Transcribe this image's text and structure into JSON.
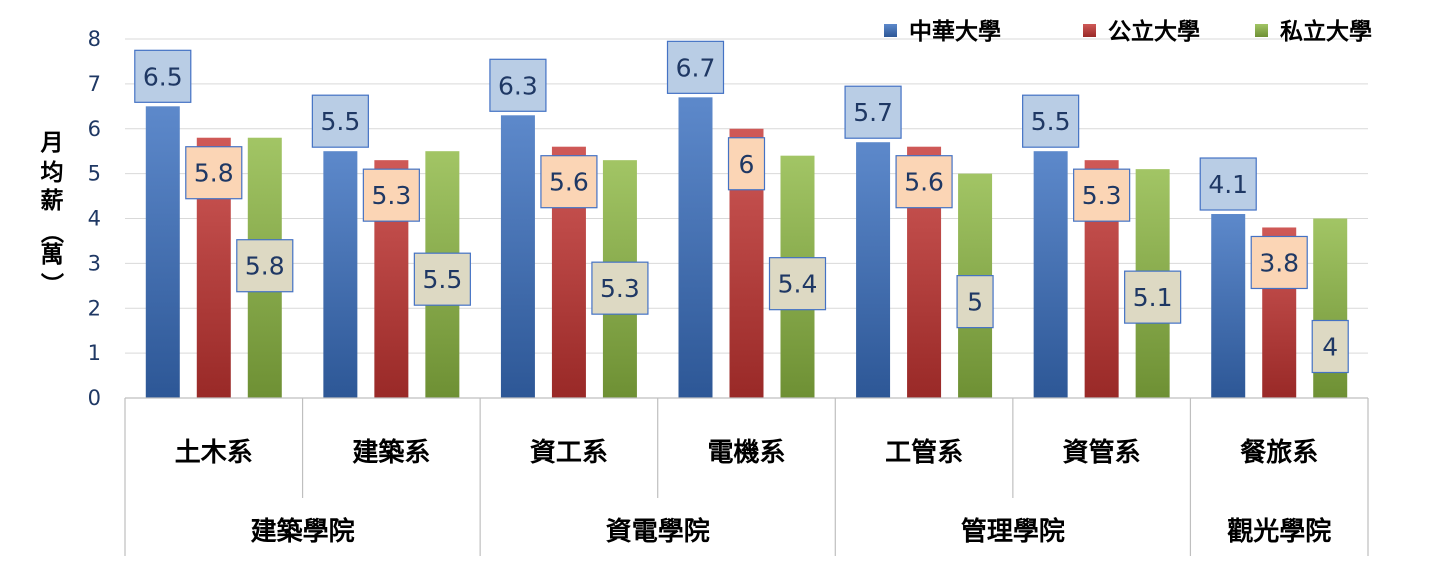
{
  "chart_data": {
    "type": "bar",
    "ylabel": "月均薪（萬）",
    "ylim": [
      0,
      8
    ],
    "yticks": [
      0,
      1,
      2,
      3,
      4,
      5,
      6,
      7,
      8
    ],
    "grid": true,
    "legend_position": "top-right",
    "categories": [
      "土木系",
      "建築系",
      "資工系",
      "電機系",
      "工管系",
      "資管系",
      "餐旅系"
    ],
    "groups": [
      {
        "label": "建築學院",
        "categories": [
          "土木系",
          "建築系"
        ]
      },
      {
        "label": "資電學院",
        "categories": [
          "資工系",
          "電機系"
        ]
      },
      {
        "label": "管理學院",
        "categories": [
          "工管系",
          "資管系"
        ]
      },
      {
        "label": "觀光學院",
        "categories": [
          "餐旅系"
        ]
      }
    ],
    "series": [
      {
        "name": "中華大學",
        "color": "#3A6FC0",
        "label_bg": "#B9CDE5",
        "values": [
          6.5,
          5.5,
          6.3,
          6.7,
          5.7,
          5.5,
          4.1
        ],
        "labels": [
          "6.5",
          "5.5",
          "6.3",
          "6.7",
          "5.7",
          "5.5",
          "4.1"
        ]
      },
      {
        "name": "公立大學",
        "color": "#C43532",
        "label_bg": "#FBD5B5",
        "values": [
          5.8,
          5.3,
          5.6,
          6,
          5.6,
          5.3,
          3.8
        ],
        "labels": [
          "5.8",
          "5.3",
          "5.6",
          "6",
          "5.6",
          "5.3",
          "3.8"
        ]
      },
      {
        "name": "私立大學",
        "color": "#8DB843",
        "label_bg": "#DDD9C3",
        "values": [
          5.8,
          5.5,
          5.3,
          5.4,
          5,
          5.1,
          4
        ],
        "labels": [
          "5.8",
          "5.5",
          "5.3",
          "5.4",
          "5",
          "5.1",
          "4"
        ]
      }
    ]
  }
}
